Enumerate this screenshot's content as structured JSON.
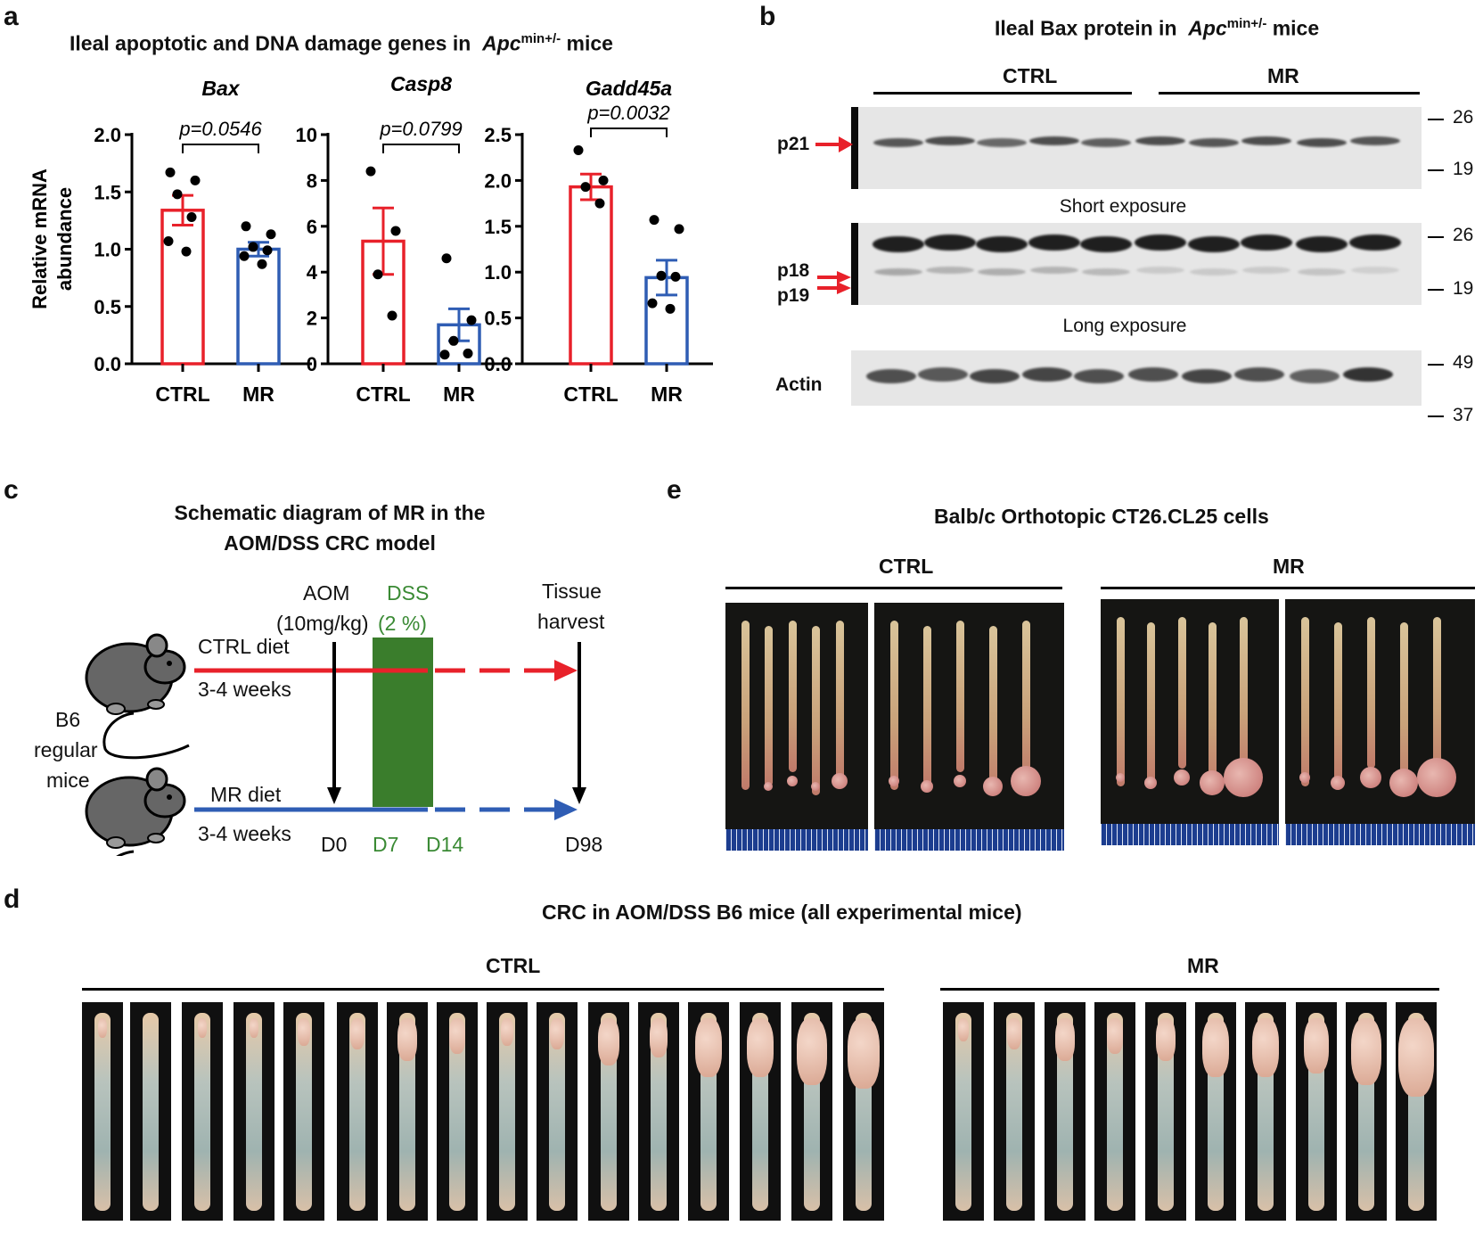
{
  "panels": {
    "a": {
      "label": "a",
      "title": "Ileal apoptotic and DNA damage genes in",
      "title_italic": "Apc",
      "title_sup": "min+/-",
      "title_tail": " mice",
      "ylabel_line1": "Relative mRNA",
      "ylabel_line2": "abundance"
    },
    "b": {
      "label": "b",
      "title": "Ileal Bax protein in ",
      "title_italic": "Apc",
      "title_sup": "min+/-",
      "title_tail": " mice",
      "group_ctrl": "CTRL",
      "group_mr": "MR",
      "p21": "p21",
      "p18": "p18",
      "p19": "p19",
      "actin": "Actin",
      "short_exposure": "Short exposure",
      "long_exposure": "Long exposure",
      "mw": {
        "m26a": "26",
        "m19a": "19",
        "m26b": "26",
        "m19b": "19",
        "m49": "49",
        "m37": "37"
      }
    },
    "c": {
      "label": "c",
      "title_line1": "Schematic diagram of MR in the",
      "title_line2": "AOM/DSS CRC model",
      "aom": "AOM",
      "aom_dose": "(10mg/kg)",
      "dss": "DSS",
      "dss_dose": "(2 %)",
      "tissue1": "Tissue",
      "tissue2": "harvest",
      "ctrl_diet": "CTRL diet",
      "mr_diet": "MR diet",
      "weeks_top": "3-4 weeks",
      "weeks_bottom": "3-4 weeks",
      "b6_1": "B6",
      "b6_2": "regular",
      "b6_3": "mice",
      "d0": "D0",
      "d7": "D7",
      "d14": "D14",
      "d98": "D98",
      "colors": {
        "ctrl": "#e8212a",
        "mr": "#2f5db4",
        "dss": "#3a7d2c",
        "dss_text": "#3a8a34"
      }
    },
    "d": {
      "label": "d",
      "title": "CRC in AOM/DSS B6 mice (all experimental mice)",
      "group_ctrl": "CTRL",
      "group_mr": "MR"
    },
    "e": {
      "label": "e",
      "title": "Balb/c Orthotopic CT26.CL25 cells",
      "group_ctrl": "CTRL",
      "group_mr": "MR"
    }
  },
  "chart_data": [
    {
      "type": "bar",
      "title": "Bax",
      "categories": [
        "CTRL",
        "MR"
      ],
      "values": [
        1.34,
        1.0
      ],
      "errors": [
        0.13,
        0.06
      ],
      "points": [
        [
          1.67,
          1.6,
          1.48,
          1.28,
          1.07,
          0.98
        ],
        [
          1.2,
          1.13,
          1.02,
          0.99,
          0.94,
          0.87
        ]
      ],
      "annotation": "p=0.0546",
      "ylim": [
        0,
        2.0
      ],
      "yticks": [
        "0.0",
        "0.5",
        "1.0",
        "1.5",
        "2.0"
      ],
      "colors": [
        "#e8212a",
        "#2f5db4"
      ]
    },
    {
      "type": "bar",
      "title": "Casp8",
      "categories": [
        "CTRL",
        "MR"
      ],
      "values": [
        5.35,
        1.7
      ],
      "errors": [
        1.45,
        0.7
      ],
      "points": [
        [
          8.4,
          5.8,
          3.9,
          2.1
        ],
        [
          4.6,
          1.9,
          1.0,
          0.45,
          0.4
        ]
      ],
      "annotation": "p=0.0799",
      "ylim": [
        0,
        10
      ],
      "yticks": [
        "0",
        "2",
        "4",
        "6",
        "8",
        "10"
      ],
      "colors": [
        "#e8212a",
        "#2f5db4"
      ]
    },
    {
      "type": "bar",
      "title": "Gadd45a",
      "categories": [
        "CTRL",
        "MR"
      ],
      "values": [
        1.93,
        0.94
      ],
      "errors": [
        0.14,
        0.19
      ],
      "points": [
        [
          2.33,
          2.0,
          1.93,
          1.75
        ],
        [
          1.57,
          1.47,
          0.96,
          0.95,
          0.66,
          0.6
        ]
      ],
      "annotation": "p=0.0032",
      "ylim": [
        0,
        2.5
      ],
      "yticks": [
        "0.0",
        "0.5",
        "1.0",
        "1.5",
        "2.0",
        "2.5"
      ],
      "colors": [
        "#e8212a",
        "#2f5db4"
      ]
    }
  ]
}
